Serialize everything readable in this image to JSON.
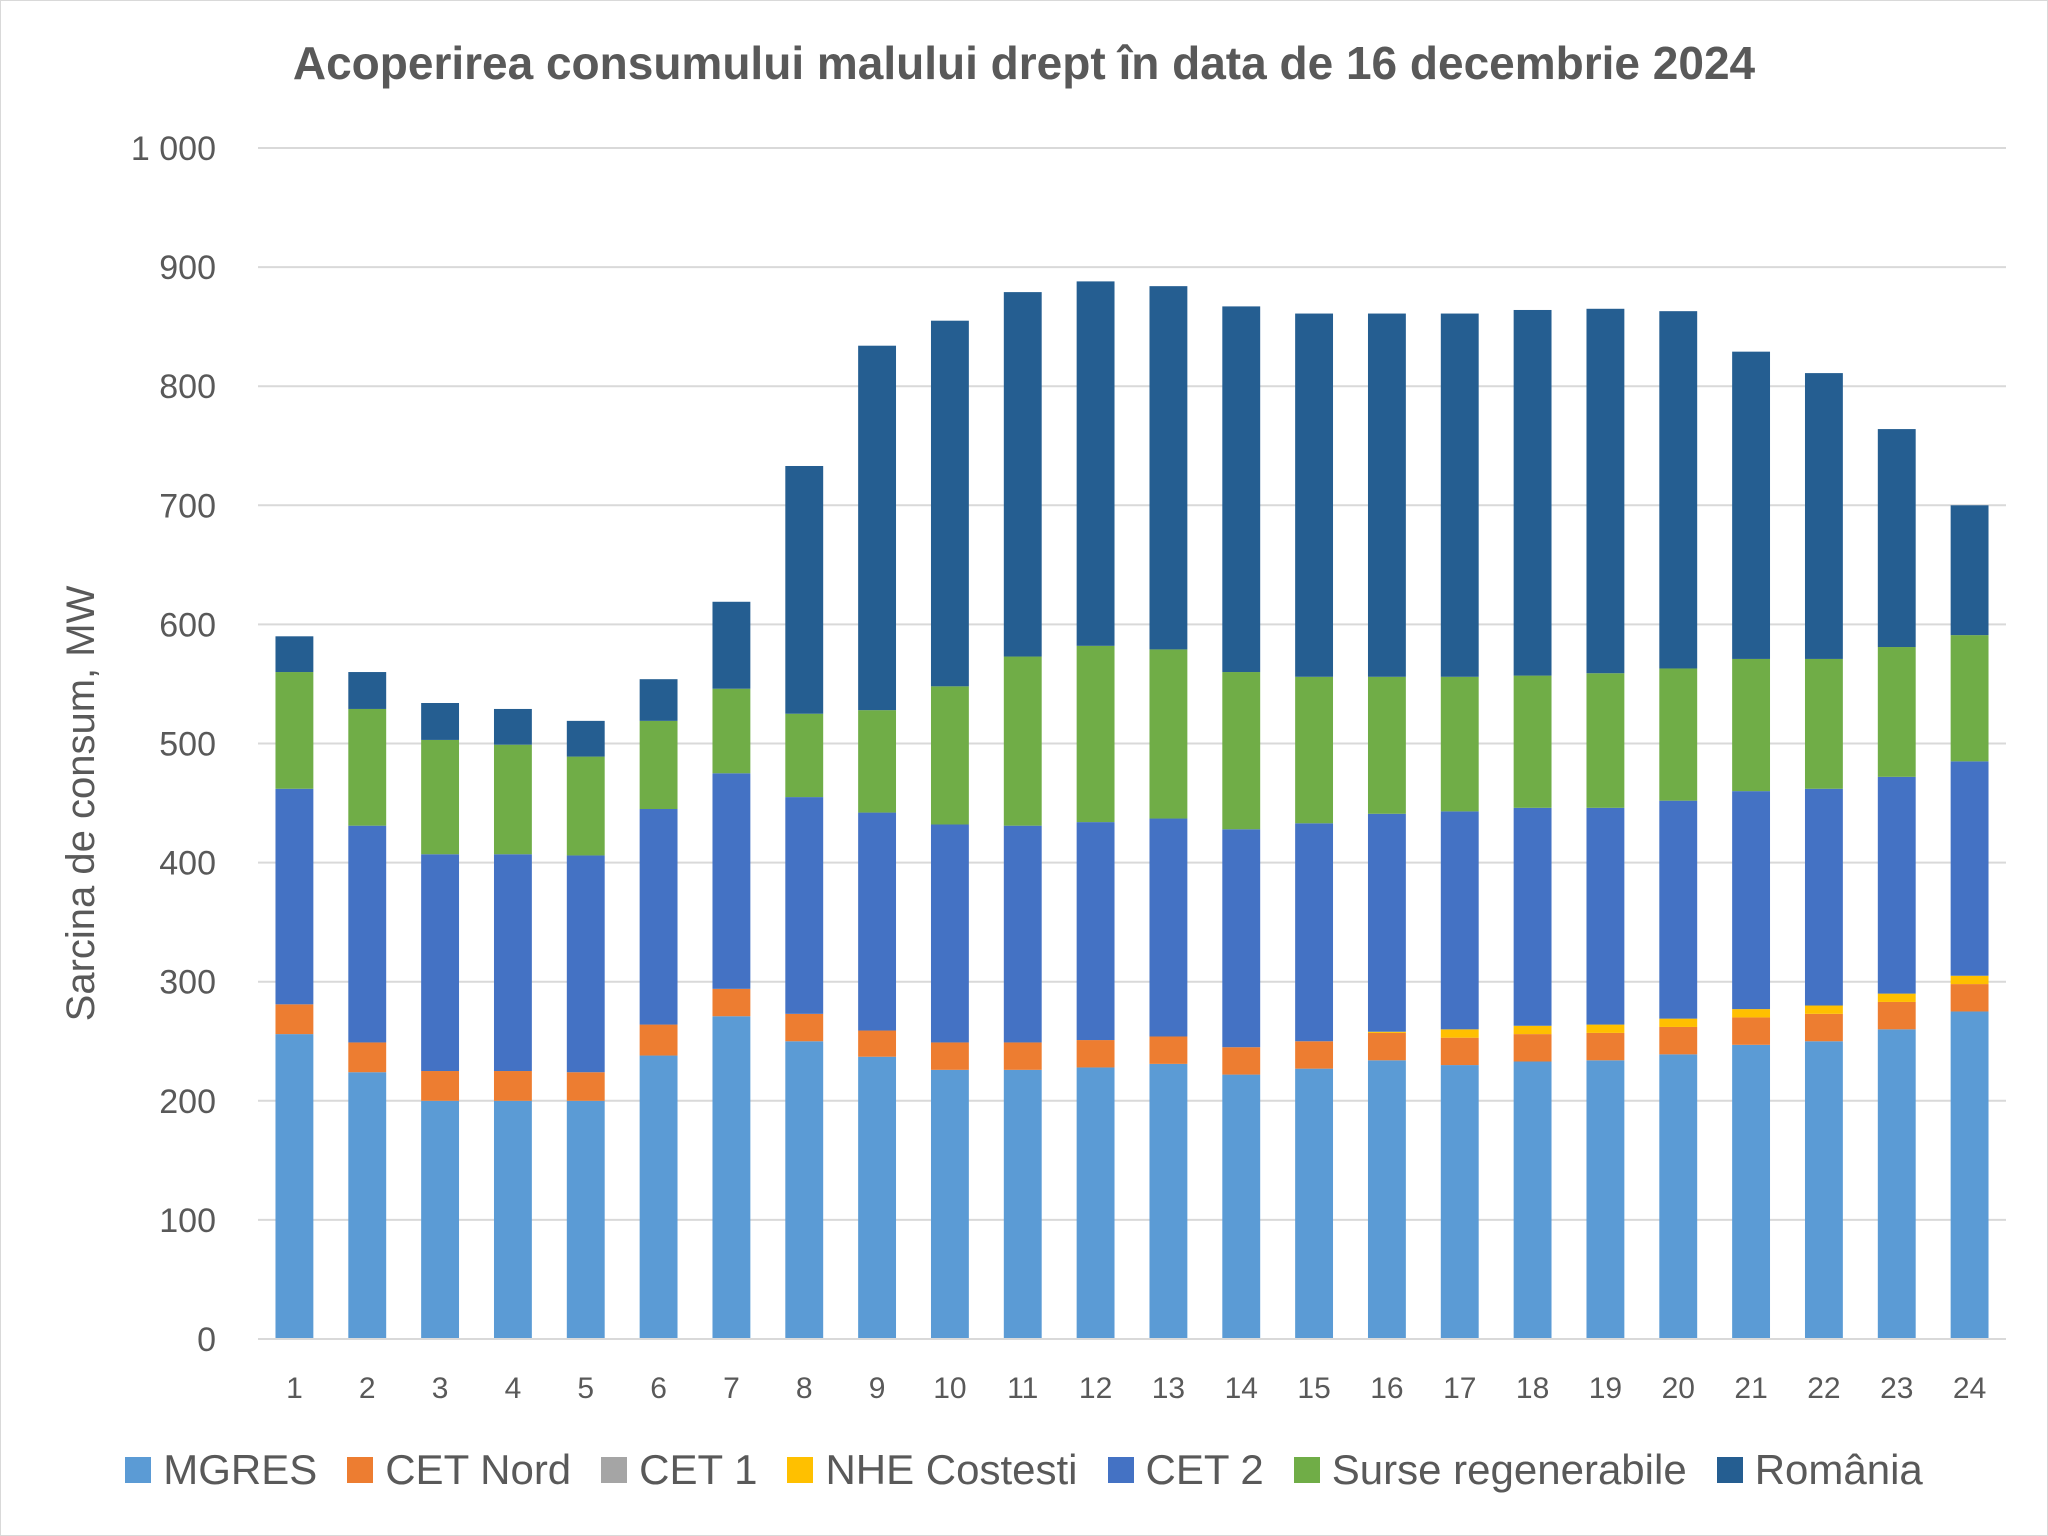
{
  "chart_data": {
    "type": "bar",
    "stacked": true,
    "title": "Acoperirea consumului malului drept în data de 16 decembrie 2024",
    "xlabel": "",
    "ylabel": "Sarcina de consum, MW",
    "ylim": [
      0,
      1000
    ],
    "yticks": [
      0,
      100,
      200,
      300,
      400,
      500,
      600,
      700,
      800,
      900,
      1000
    ],
    "ytick_labels": [
      "0",
      "100",
      "200",
      "300",
      "400",
      "500",
      "600",
      "700",
      "800",
      "900",
      "1 000"
    ],
    "grid": "horizontal",
    "legend_position": "bottom",
    "categories": [
      "1",
      "2",
      "3",
      "4",
      "5",
      "6",
      "7",
      "8",
      "9",
      "10",
      "11",
      "12",
      "13",
      "14",
      "15",
      "16",
      "17",
      "18",
      "19",
      "20",
      "21",
      "22",
      "23",
      "24"
    ],
    "series": [
      {
        "name": "MGRES",
        "color": "#5b9bd5",
        "values": [
          256,
          224,
          200,
          200,
          200,
          238,
          271,
          250,
          237,
          226,
          226,
          228,
          231,
          222,
          227,
          234,
          230,
          233,
          234,
          239,
          247,
          250,
          260,
          275
        ]
      },
      {
        "name": "CET Nord",
        "color": "#ed7d31",
        "values": [
          25,
          25,
          25,
          25,
          24,
          26,
          23,
          23,
          22,
          23,
          23,
          23,
          23,
          23,
          23,
          23,
          23,
          23,
          23,
          23,
          23,
          23,
          23,
          23
        ]
      },
      {
        "name": "CET 1",
        "color": "#a5a5a5",
        "values": [
          0,
          0,
          0,
          0,
          0,
          0,
          0,
          0,
          0,
          0,
          0,
          0,
          0,
          0,
          0,
          0,
          0,
          0,
          0,
          0,
          0,
          0,
          0,
          0
        ]
      },
      {
        "name": "NHE Costesti",
        "color": "#ffc000",
        "values": [
          0,
          0,
          0,
          0,
          0,
          0,
          0,
          0,
          0,
          0,
          0,
          0,
          0,
          0,
          0,
          1,
          7,
          7,
          7,
          7,
          7,
          7,
          7,
          7
        ]
      },
      {
        "name": "CET 2",
        "color": "#4472c4",
        "values": [
          181,
          182,
          182,
          182,
          182,
          181,
          181,
          182,
          183,
          183,
          182,
          183,
          183,
          183,
          183,
          183,
          183,
          183,
          182,
          183,
          183,
          182,
          182,
          180
        ]
      },
      {
        "name": "Surse regenerabile",
        "color": "#70ad47",
        "values": [
          98,
          98,
          96,
          92,
          83,
          74,
          71,
          70,
          86,
          116,
          142,
          148,
          142,
          132,
          123,
          115,
          113,
          111,
          113,
          111,
          111,
          109,
          109,
          106
        ]
      },
      {
        "name": "România",
        "color": "#255e91",
        "values": [
          30,
          31,
          31,
          30,
          30,
          35,
          73,
          208,
          306,
          307,
          306,
          306,
          305,
          307,
          305,
          305,
          305,
          307,
          306,
          300,
          258,
          240,
          183,
          109
        ]
      }
    ]
  }
}
